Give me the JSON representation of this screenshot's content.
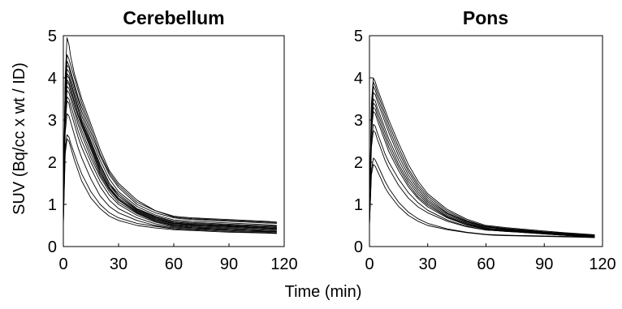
{
  "figure": {
    "ylabel": "SUV (Bq/cc x wt / ID)",
    "xlabel": "Time (min)"
  },
  "chart_data": [
    {
      "type": "line",
      "title": "Cerebellum",
      "xlabel": "Time (min)",
      "ylabel": "SUV (Bq/cc x wt / ID)",
      "xlim": [
        0,
        120
      ],
      "ylim": [
        0,
        5
      ],
      "xticks": [
        "0",
        "30",
        "60",
        "90",
        "120"
      ],
      "yticks": [
        "0",
        "1",
        "2",
        "3",
        "4",
        "5"
      ],
      "grid": false,
      "legend": "none",
      "line_color": "#000000",
      "x": [
        0,
        1,
        2,
        3,
        4,
        6,
        8,
        10,
        15,
        20,
        25,
        30,
        40,
        50,
        60,
        64,
        70,
        80,
        90,
        100,
        110,
        116
      ],
      "series": [
        {
          "values": [
            1.0,
            4.0,
            4.95,
            4.8,
            4.5,
            4.1,
            3.8,
            3.5,
            2.9,
            2.3,
            1.8,
            1.5,
            1.1,
            0.85,
            0.7,
            0.68,
            0.66,
            0.64,
            0.62,
            0.6,
            0.58,
            0.57
          ]
        },
        {
          "values": [
            1.1,
            3.9,
            4.55,
            4.45,
            4.3,
            4.0,
            3.7,
            3.4,
            2.8,
            2.2,
            1.75,
            1.45,
            1.05,
            0.85,
            0.72,
            0.7,
            0.68,
            0.66,
            0.64,
            0.62,
            0.6,
            0.58
          ]
        },
        {
          "values": [
            0.9,
            3.8,
            4.4,
            4.3,
            4.15,
            3.85,
            3.55,
            3.3,
            2.7,
            2.15,
            1.7,
            1.4,
            1.0,
            0.8,
            0.68,
            0.66,
            0.64,
            0.62,
            0.6,
            0.58,
            0.56,
            0.55
          ]
        },
        {
          "values": [
            1.0,
            3.7,
            4.3,
            4.25,
            4.1,
            3.8,
            3.5,
            3.2,
            2.6,
            2.05,
            1.6,
            1.3,
            0.95,
            0.75,
            0.63,
            0.62,
            0.6,
            0.58,
            0.56,
            0.54,
            0.52,
            0.5
          ]
        },
        {
          "values": [
            0.8,
            3.6,
            4.2,
            4.15,
            4.0,
            3.7,
            3.4,
            3.1,
            2.5,
            1.95,
            1.5,
            1.25,
            0.9,
            0.72,
            0.6,
            0.59,
            0.57,
            0.55,
            0.53,
            0.51,
            0.49,
            0.48
          ]
        },
        {
          "values": [
            0.9,
            3.5,
            4.1,
            4.05,
            3.9,
            3.6,
            3.3,
            3.0,
            2.45,
            1.9,
            1.5,
            1.2,
            0.88,
            0.7,
            0.58,
            0.57,
            0.55,
            0.53,
            0.51,
            0.49,
            0.47,
            0.46
          ]
        },
        {
          "values": [
            0.9,
            3.5,
            4.05,
            4.0,
            3.85,
            3.55,
            3.25,
            2.95,
            2.4,
            1.85,
            1.45,
            1.2,
            0.86,
            0.68,
            0.56,
            0.55,
            0.53,
            0.51,
            0.49,
            0.47,
            0.45,
            0.44
          ]
        },
        {
          "values": [
            0.8,
            3.4,
            3.95,
            3.9,
            3.75,
            3.45,
            3.15,
            2.9,
            2.35,
            1.8,
            1.4,
            1.15,
            0.84,
            0.66,
            0.55,
            0.54,
            0.52,
            0.5,
            0.48,
            0.46,
            0.44,
            0.43
          ]
        },
        {
          "values": [
            0.8,
            3.3,
            3.9,
            3.85,
            3.7,
            3.4,
            3.1,
            2.85,
            2.3,
            1.75,
            1.38,
            1.12,
            0.82,
            0.64,
            0.54,
            0.53,
            0.51,
            0.49,
            0.47,
            0.45,
            0.43,
            0.42
          ]
        },
        {
          "values": [
            0.7,
            3.2,
            3.8,
            3.75,
            3.6,
            3.3,
            3.0,
            2.75,
            2.2,
            1.7,
            1.35,
            1.1,
            0.8,
            0.62,
            0.52,
            0.51,
            0.49,
            0.47,
            0.45,
            0.43,
            0.41,
            0.4
          ]
        },
        {
          "values": [
            0.7,
            3.1,
            3.7,
            3.65,
            3.5,
            3.2,
            2.9,
            2.65,
            2.1,
            1.65,
            1.3,
            1.05,
            0.78,
            0.6,
            0.5,
            0.49,
            0.47,
            0.45,
            0.43,
            0.41,
            0.39,
            0.38
          ]
        },
        {
          "values": [
            0.7,
            3.0,
            3.55,
            3.5,
            3.35,
            3.05,
            2.75,
            2.5,
            2.0,
            1.55,
            1.22,
            1.0,
            0.74,
            0.58,
            0.48,
            0.47,
            0.45,
            0.43,
            0.41,
            0.39,
            0.37,
            0.36
          ]
        },
        {
          "values": [
            0.7,
            2.9,
            3.45,
            3.4,
            3.2,
            2.9,
            2.6,
            2.35,
            1.85,
            1.42,
            1.1,
            0.9,
            0.68,
            0.54,
            0.46,
            0.45,
            0.44,
            0.42,
            0.4,
            0.38,
            0.36,
            0.35
          ]
        },
        {
          "values": [
            0.6,
            2.7,
            3.15,
            3.1,
            2.95,
            2.65,
            2.35,
            2.1,
            1.6,
            1.2,
            0.95,
            0.8,
            0.62,
            0.5,
            0.44,
            0.43,
            0.42,
            0.4,
            0.38,
            0.36,
            0.35,
            0.34
          ]
        },
        {
          "values": [
            0.6,
            2.3,
            2.65,
            2.6,
            2.45,
            2.2,
            1.95,
            1.72,
            1.3,
            1.0,
            0.8,
            0.68,
            0.55,
            0.48,
            0.42,
            0.41,
            0.4,
            0.38,
            0.36,
            0.34,
            0.33,
            0.32
          ]
        },
        {
          "values": [
            0.5,
            2.2,
            2.55,
            2.5,
            2.35,
            2.05,
            1.8,
            1.55,
            1.15,
            0.9,
            0.72,
            0.62,
            0.5,
            0.44,
            0.4,
            0.39,
            0.38,
            0.36,
            0.34,
            0.33,
            0.32,
            0.31
          ]
        }
      ]
    },
    {
      "type": "line",
      "title": "Pons",
      "xlabel": "Time (min)",
      "ylabel": "",
      "xlim": [
        0,
        120
      ],
      "ylim": [
        0,
        5
      ],
      "xticks": [
        "0",
        "30",
        "60",
        "90",
        "120"
      ],
      "yticks": [
        "0",
        "1",
        "2",
        "3",
        "4",
        "5"
      ],
      "grid": false,
      "legend": "none",
      "line_color": "#000000",
      "x": [
        0,
        1,
        2,
        3,
        4,
        6,
        8,
        10,
        15,
        20,
        25,
        30,
        40,
        50,
        60,
        64,
        70,
        80,
        90,
        100,
        110,
        116
      ],
      "series": [
        {
          "values": [
            0.9,
            3.4,
            4.0,
            3.9,
            3.75,
            3.5,
            3.25,
            3.0,
            2.45,
            1.95,
            1.55,
            1.25,
            0.88,
            0.65,
            0.5,
            0.48,
            0.45,
            0.41,
            0.37,
            0.33,
            0.3,
            0.28
          ]
        },
        {
          "values": [
            0.8,
            3.3,
            3.9,
            3.8,
            3.65,
            3.4,
            3.15,
            2.9,
            2.35,
            1.85,
            1.48,
            1.2,
            0.84,
            0.62,
            0.48,
            0.46,
            0.43,
            0.39,
            0.35,
            0.32,
            0.29,
            0.27
          ]
        },
        {
          "values": [
            0.8,
            3.2,
            3.8,
            3.7,
            3.55,
            3.3,
            3.05,
            2.8,
            2.25,
            1.78,
            1.42,
            1.15,
            0.8,
            0.6,
            0.47,
            0.45,
            0.42,
            0.38,
            0.34,
            0.31,
            0.28,
            0.26
          ]
        },
        {
          "values": [
            0.8,
            3.1,
            3.65,
            3.6,
            3.45,
            3.2,
            2.95,
            2.7,
            2.15,
            1.7,
            1.36,
            1.1,
            0.78,
            0.58,
            0.46,
            0.44,
            0.41,
            0.37,
            0.33,
            0.3,
            0.27,
            0.25
          ]
        },
        {
          "values": [
            0.7,
            3.0,
            3.5,
            3.45,
            3.3,
            3.05,
            2.8,
            2.55,
            2.05,
            1.62,
            1.3,
            1.06,
            0.75,
            0.56,
            0.44,
            0.42,
            0.4,
            0.36,
            0.32,
            0.29,
            0.26,
            0.24
          ]
        },
        {
          "values": [
            0.7,
            2.9,
            3.4,
            3.35,
            3.2,
            2.95,
            2.7,
            2.45,
            1.95,
            1.55,
            1.24,
            1.02,
            0.72,
            0.54,
            0.43,
            0.41,
            0.39,
            0.35,
            0.31,
            0.28,
            0.25,
            0.23
          ]
        },
        {
          "values": [
            0.7,
            2.8,
            3.3,
            3.25,
            3.1,
            2.85,
            2.6,
            2.35,
            1.88,
            1.48,
            1.18,
            0.98,
            0.7,
            0.52,
            0.42,
            0.4,
            0.38,
            0.34,
            0.3,
            0.27,
            0.24,
            0.22
          ]
        },
        {
          "values": [
            0.6,
            2.7,
            3.2,
            3.15,
            3.0,
            2.75,
            2.5,
            2.25,
            1.8,
            1.42,
            1.14,
            0.94,
            0.68,
            0.51,
            0.41,
            0.39,
            0.37,
            0.33,
            0.3,
            0.27,
            0.24,
            0.22
          ]
        },
        {
          "values": [
            0.6,
            2.5,
            2.9,
            2.85,
            2.7,
            2.45,
            2.2,
            2.0,
            1.6,
            1.28,
            1.04,
            0.86,
            0.63,
            0.48,
            0.39,
            0.38,
            0.36,
            0.33,
            0.3,
            0.27,
            0.25,
            0.23
          ]
        },
        {
          "values": [
            0.6,
            2.35,
            2.75,
            2.7,
            2.55,
            2.3,
            2.05,
            1.85,
            1.45,
            1.15,
            0.94,
            0.8,
            0.6,
            0.47,
            0.39,
            0.38,
            0.36,
            0.34,
            0.32,
            0.3,
            0.28,
            0.27
          ]
        },
        {
          "values": [
            0.5,
            1.8,
            2.1,
            2.05,
            1.95,
            1.75,
            1.55,
            1.38,
            1.05,
            0.82,
            0.66,
            0.55,
            0.42,
            0.34,
            0.29,
            0.28,
            0.27,
            0.26,
            0.25,
            0.24,
            0.23,
            0.22
          ]
        },
        {
          "values": [
            0.5,
            1.7,
            1.95,
            1.9,
            1.8,
            1.6,
            1.4,
            1.25,
            0.95,
            0.74,
            0.6,
            0.5,
            0.4,
            0.33,
            0.28,
            0.27,
            0.26,
            0.25,
            0.24,
            0.23,
            0.22,
            0.21
          ]
        }
      ]
    }
  ]
}
